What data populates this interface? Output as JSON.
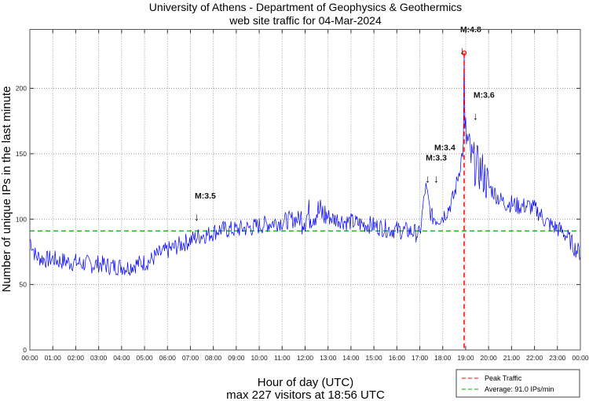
{
  "chart_data": {
    "type": "line",
    "title": "University of Athens - Department of Geophysics & Geothermics",
    "subtitle": "web site traffic for 04-Mar-2024",
    "xlabel": "Hour of day (UTC)",
    "xlabel2": "max 227 visitors at 18:56 UTC",
    "ylabel": "Number of unique IPs in the last minute",
    "xlim": [
      0,
      24
    ],
    "ylim": [
      0,
      245
    ],
    "grid": true,
    "x_ticks": [
      "00:00",
      "01:00",
      "02:00",
      "03:00",
      "04:00",
      "05:00",
      "06:00",
      "07:00",
      "08:00",
      "09:00",
      "10:00",
      "11:00",
      "12:00",
      "13:00",
      "14:00",
      "15:00",
      "16:00",
      "17:00",
      "18:00",
      "19:00",
      "20:00",
      "21:00",
      "22:00",
      "23:00",
      "00:00"
    ],
    "y_ticks": [
      0,
      50,
      100,
      150,
      200
    ],
    "series": [
      {
        "name": "Traffic",
        "color": "#0000ff",
        "x_step_hours": 0.25,
        "values": [
          85,
          72,
          70,
          69,
          70,
          68,
          68,
          67,
          67,
          66,
          66,
          65,
          66,
          65,
          64,
          64,
          64,
          63,
          65,
          66,
          67,
          68,
          72,
          74,
          76,
          78,
          80,
          82,
          84,
          86,
          88,
          88,
          90,
          92,
          92,
          92,
          92,
          93,
          93,
          94,
          95,
          96,
          97,
          98,
          98,
          99,
          100,
          100,
          102,
          104,
          106,
          104,
          102,
          100,
          100,
          98,
          98,
          97,
          96,
          96,
          95,
          94,
          93,
          92,
          92,
          91,
          91,
          90,
          88,
          125,
          102,
          100,
          102,
          108,
          118,
          140,
          165,
          145,
          140,
          135,
          125,
          120,
          115,
          112,
          112,
          110,
          110,
          110,
          108,
          104,
          98,
          95,
          93,
          90,
          85,
          78,
          74
        ]
      }
    ],
    "peak": {
      "x_hours": 18.933,
      "value": 227,
      "label": "Peak Traffic",
      "color": "#ff0000"
    },
    "average": {
      "value": 91.0,
      "label": "Average: 91.0 IPs/min",
      "color": "#00aa00"
    },
    "annotations": [
      {
        "label": "M:3.5",
        "x_hours": 7.19,
        "y": 108
      },
      {
        "label": "M:3.3",
        "x_hours": 17.26,
        "y": 137
      },
      {
        "label": "M:3.4",
        "x_hours": 17.63,
        "y": 137
      },
      {
        "label": "M:4.8",
        "x_hours": 18.76,
        "y": 235
      },
      {
        "label": "M:3.6",
        "x_hours": 19.34,
        "y": 185
      }
    ],
    "legend_position": "bottom-right"
  }
}
